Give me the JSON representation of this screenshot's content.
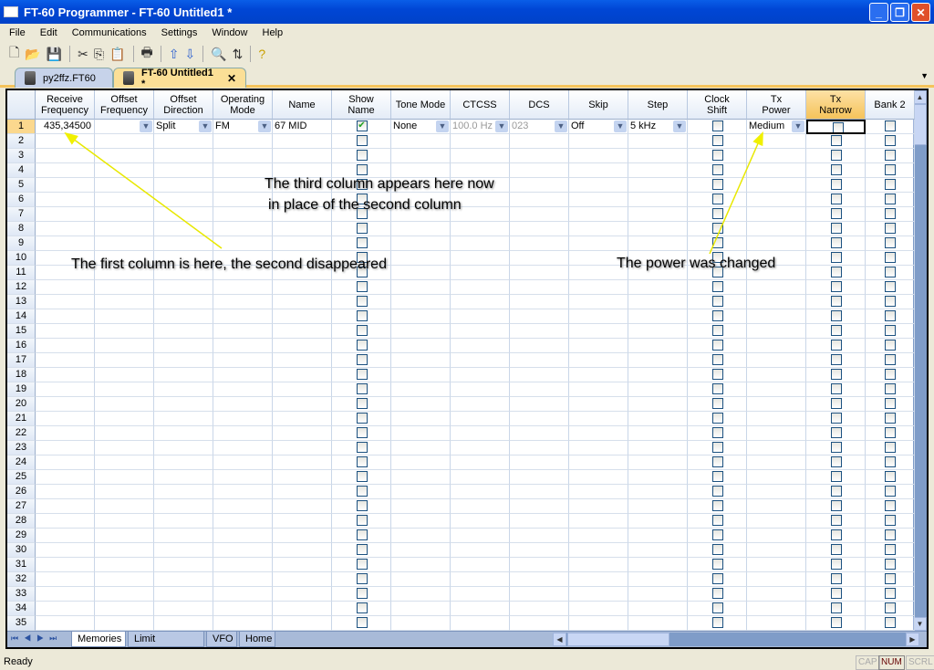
{
  "window": {
    "title": "FT-60 Programmer - FT-60 Untitled1 *"
  },
  "menu": [
    "File",
    "Edit",
    "Communications",
    "Settings",
    "Window",
    "Help"
  ],
  "toolbar_icons": [
    "new-icon",
    "open-icon",
    "save-icon",
    "cut-icon",
    "copy-icon",
    "paste-icon",
    "print-icon",
    "upload-icon",
    "download-icon",
    "find-icon",
    "sort-icon",
    "help-icon"
  ],
  "doc_tabs": [
    {
      "label": "py2ffz.FT60",
      "active": false
    },
    {
      "label": "FT-60 Untitled1 *",
      "active": true
    }
  ],
  "columns": [
    "Receive\nFrequency",
    "Offset\nFrequency",
    "Offset\nDirection",
    "Operating\nMode",
    "Name",
    "Show\nName",
    "Tone Mode",
    "CTCSS",
    "DCS",
    "Skip",
    "Step",
    "Clock\nShift",
    "Tx\nPower",
    "Tx\nNarrow",
    "Bank 2"
  ],
  "row1": {
    "num": "1",
    "receive_frequency": "435,34500",
    "offset_frequency": "",
    "offset_direction": "Split",
    "operating_mode": "FM",
    "name": "67 MID",
    "show_name": true,
    "tone_mode": "None",
    "ctcss": "100.0 Hz",
    "dcs": "023",
    "skip": "Off",
    "step": "5 kHz",
    "clock_shift": false,
    "tx_power": "Medium",
    "tx_narrow": false,
    "bank2": false
  },
  "row_count": 35,
  "sheet_tabs": [
    "Memories",
    "Limit Memories",
    "VFO",
    "Home"
  ],
  "annotations": {
    "third_column_line1": "The third column appears here now",
    "third_column_line2": "in place of the second column",
    "first_column": "The first column is here, the second disappeared",
    "power": "The power was changed"
  },
  "status": {
    "text": "Ready",
    "indicators": [
      "CAP",
      "NUM",
      "SCRL"
    ]
  },
  "colors": {
    "title_bar": "#0046d5",
    "selected_header": "#f5c35a",
    "arrow": "#e8e800"
  }
}
